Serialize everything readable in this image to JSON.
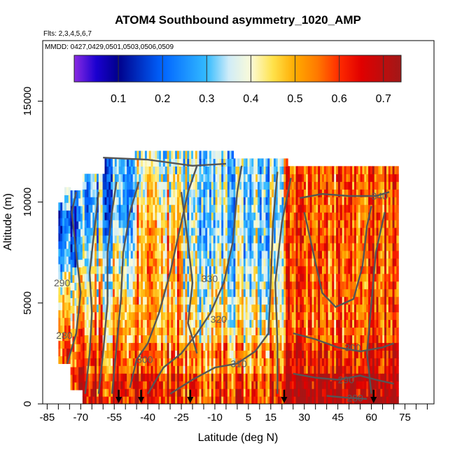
{
  "chart_data": {
    "type": "heatmap",
    "title": "ATOM4 Southbound asymmetry_1020_AMP",
    "subtitle_flights": "Flts: 2,3,4,5,6,7",
    "subtitle_dates": "MMDD: 0427,0429,0501,0503,0506,0509",
    "xlabel": "Latitude (deg N)",
    "ylabel": "Altitude (m)",
    "xlim": [
      -87,
      88
    ],
    "ylim": [
      0,
      18000
    ],
    "x_ticks": [
      -85,
      -70,
      -55,
      -40,
      -25,
      -10,
      5,
      15,
      30,
      45,
      60,
      75
    ],
    "x_tick_labels": [
      "-85",
      "-70",
      "-55",
      "-40",
      "-25",
      "-10",
      "5",
      "15",
      "30",
      "45",
      "60",
      "75"
    ],
    "y_ticks": [
      0,
      5000,
      10000,
      15000
    ],
    "y_tick_labels": [
      "0",
      "5000",
      "10000",
      "15000"
    ],
    "colorbar": {
      "range": [
        0.0,
        0.74
      ],
      "ticks": [
        0.1,
        0.2,
        0.3,
        0.4,
        0.5,
        0.6,
        0.7
      ],
      "tick_labels": [
        "0.1",
        "0.2",
        "0.3",
        "0.4",
        "0.5",
        "0.6",
        "0.7"
      ],
      "stops": [
        {
          "v": 0.0,
          "c": "#8a2be2"
        },
        {
          "v": 0.05,
          "c": "#1a00d0"
        },
        {
          "v": 0.1,
          "c": "#00008b"
        },
        {
          "v": 0.2,
          "c": "#0064ff"
        },
        {
          "v": 0.3,
          "c": "#33bbff"
        },
        {
          "v": 0.35,
          "c": "#d0ecf8"
        },
        {
          "v": 0.4,
          "c": "#fbfbd8"
        },
        {
          "v": 0.45,
          "c": "#ffe24a"
        },
        {
          "v": 0.5,
          "c": "#ffaa00"
        },
        {
          "v": 0.55,
          "c": "#ff7a00"
        },
        {
          "v": 0.6,
          "c": "#ff2a00"
        },
        {
          "v": 0.65,
          "c": "#e00000"
        },
        {
          "v": 0.74,
          "c": "#a11818"
        }
      ]
    },
    "potential_temperature_contours": [
      {
        "label": "290",
        "label_lat": -82,
        "label_alt": 6000
      },
      {
        "label": "280",
        "label_lat": -81,
        "label_alt": 3400
      },
      {
        "label": "300",
        "label_lat": -45,
        "label_alt": 2200
      },
      {
        "label": "330",
        "label_lat": -16,
        "label_alt": 6200
      },
      {
        "label": "320",
        "label_lat": -12,
        "label_alt": 4200
      },
      {
        "label": "310",
        "label_lat": -3,
        "label_alt": 2000
      },
      {
        "label": "340",
        "label_lat": 60,
        "label_alt": 10300
      },
      {
        "label": "300",
        "label_lat": 48,
        "label_alt": 2800
      },
      {
        "label": "290",
        "label_lat": 45,
        "label_alt": 1200
      },
      {
        "label": "280",
        "label_lat": 49,
        "label_alt": 300
      }
    ],
    "profile_markers_lat": [
      -53,
      -43,
      -21,
      21,
      61
    ]
  }
}
